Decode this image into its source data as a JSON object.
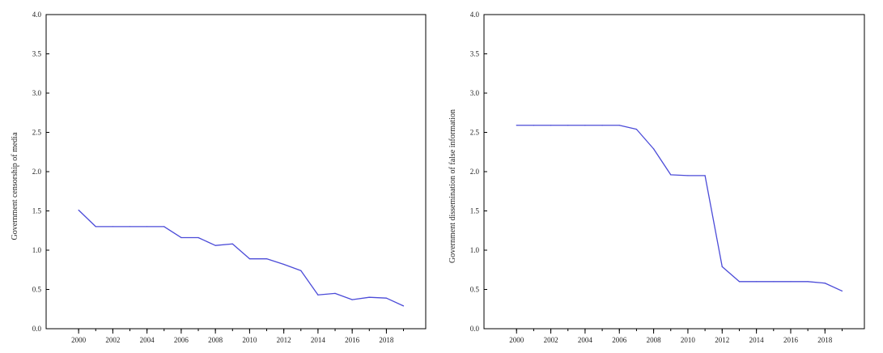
{
  "chart_data": [
    {
      "type": "line",
      "title": "",
      "xlabel": "",
      "ylabel": "Government censorship of media",
      "xlim": [
        1998.1,
        2020.3
      ],
      "ylim": [
        0,
        4
      ],
      "x_ticks": [
        "2000",
        "2002",
        "2004",
        "2006",
        "2008",
        "2010",
        "2012",
        "2014",
        "2016",
        "2018"
      ],
      "y_ticks": [
        "0.0",
        "0.5",
        "1.0",
        "1.5",
        "2.0",
        "2.5",
        "3.0",
        "3.5",
        "4.0"
      ],
      "grid": false,
      "legend": "none",
      "line_color": "#4b4bd8",
      "x": [
        2000,
        2001,
        2002,
        2003,
        2004,
        2005,
        2006,
        2007,
        2008,
        2009,
        2010,
        2011,
        2012,
        2013,
        2014,
        2015,
        2016,
        2017,
        2018,
        2019
      ],
      "series": [
        {
          "values": [
            1.51,
            1.3,
            1.3,
            1.3,
            1.3,
            1.3,
            1.16,
            1.16,
            1.06,
            1.08,
            0.89,
            0.89,
            0.82,
            0.74,
            0.43,
            0.45,
            0.37,
            0.4,
            0.39,
            0.29
          ]
        }
      ]
    },
    {
      "type": "line",
      "title": "",
      "xlabel": "",
      "ylabel": "Government dissemination of false information",
      "xlim": [
        1998.1,
        2020.3
      ],
      "ylim": [
        0,
        4
      ],
      "x_ticks": [
        "2000",
        "2002",
        "2004",
        "2006",
        "2008",
        "2010",
        "2012",
        "2014",
        "2016",
        "2018"
      ],
      "y_ticks": [
        "0.0",
        "0.5",
        "1.0",
        "1.5",
        "2.0",
        "2.5",
        "3.0",
        "3.5",
        "4.0"
      ],
      "grid": false,
      "legend": "none",
      "line_color": "#4b4bd8",
      "x": [
        2000,
        2001,
        2002,
        2003,
        2004,
        2005,
        2006,
        2007,
        2008,
        2009,
        2010,
        2011,
        2012,
        2013,
        2014,
        2015,
        2016,
        2017,
        2018,
        2019
      ],
      "series": [
        {
          "values": [
            2.59,
            2.59,
            2.59,
            2.59,
            2.59,
            2.59,
            2.59,
            2.54,
            2.29,
            1.96,
            1.95,
            1.95,
            0.79,
            0.6,
            0.6,
            0.6,
            0.6,
            0.6,
            0.58,
            0.48
          ]
        }
      ]
    }
  ]
}
